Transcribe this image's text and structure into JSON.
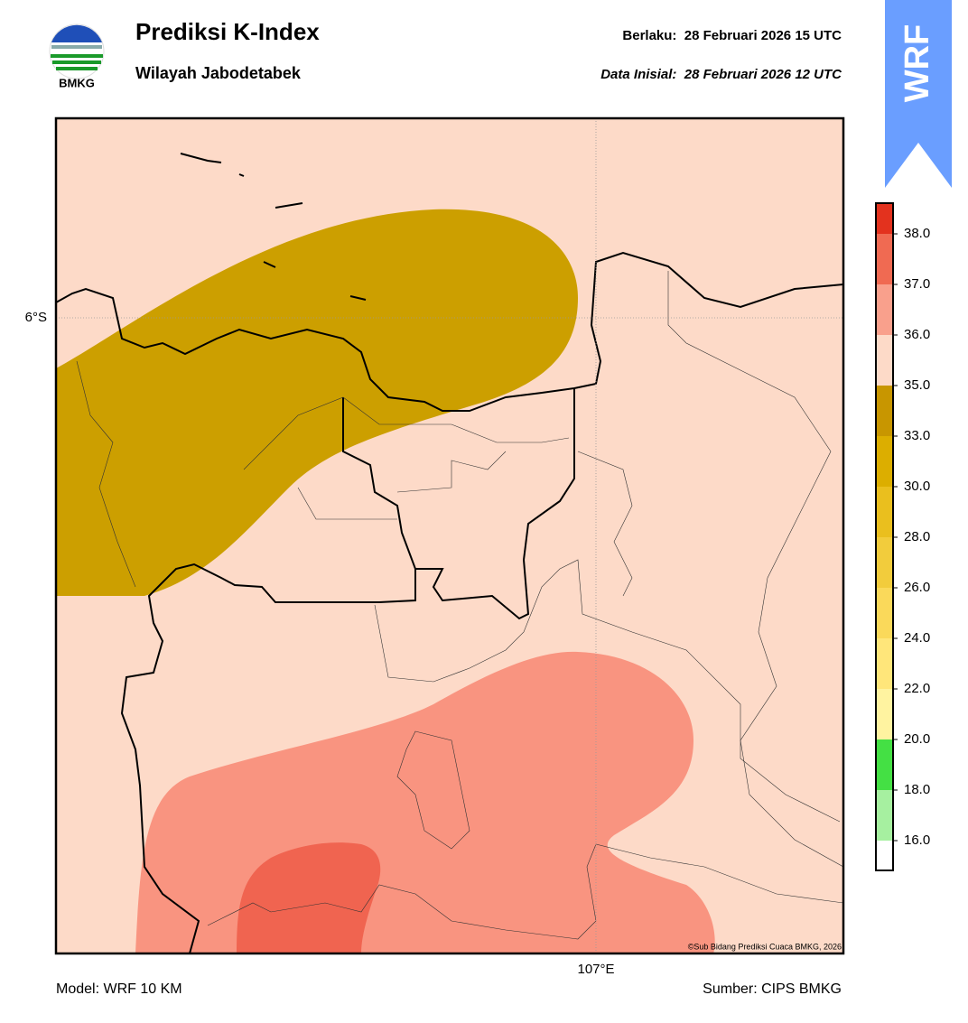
{
  "header": {
    "logo_text": "BMKG",
    "title": "Prediksi K-Index",
    "subtitle": "Wilayah Jabodetabek",
    "valid": "Berlaku:  28 Februari 2026 15 UTC",
    "initial": "Data Inisial:  28 Februari 2026 12 UTC",
    "badge": "WRF"
  },
  "map": {
    "lat_label": "6°S",
    "lon_label": "107°E",
    "credit": "©Sub Bidang Prediksi Cuaca BMKG, 2026"
  },
  "colorbar": {
    "colors": [
      "#ffffff",
      "#a6f0a0",
      "#44e044",
      "#fff3a0",
      "#ffe67a",
      "#fad95a",
      "#f2cc3c",
      "#eabf1e",
      "#dcae00",
      "#c89600",
      "#fddac8",
      "#f9a08c",
      "#f06a52",
      "#e3321e"
    ],
    "ticks": [
      {
        "value": 16,
        "label": "16.0"
      },
      {
        "value": 18,
        "label": "18.0"
      },
      {
        "value": 20,
        "label": "20.0"
      },
      {
        "value": 22,
        "label": "22.0"
      },
      {
        "value": 24,
        "label": "24.0"
      },
      {
        "value": 26,
        "label": "26.0"
      },
      {
        "value": 28,
        "label": "28.0"
      },
      {
        "value": 30,
        "label": "30.0"
      },
      {
        "value": 33,
        "label": "33.0"
      },
      {
        "value": 35,
        "label": "35.0"
      },
      {
        "value": 36,
        "label": "36.0"
      },
      {
        "value": 37,
        "label": "37.0"
      },
      {
        "value": 38,
        "label": "38.0"
      }
    ]
  },
  "footer": {
    "model": "Model: WRF 10 KM",
    "source": "Sumber: CIPS BMKG"
  }
}
